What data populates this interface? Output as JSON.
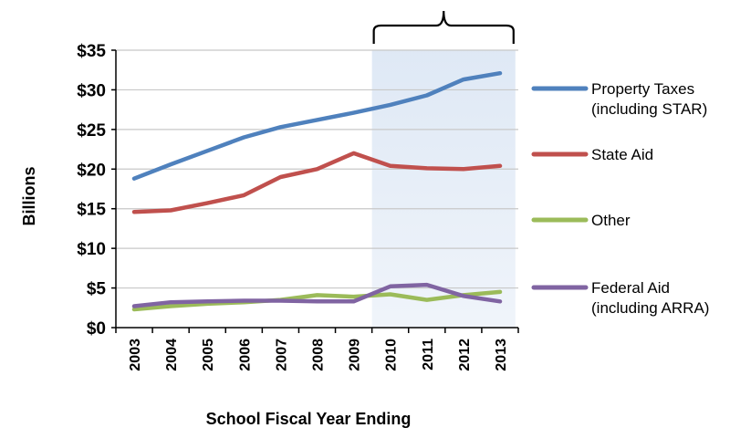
{
  "chart_data": {
    "type": "line",
    "xlabel": "School Fiscal Year Ending",
    "ylabel": "Billions",
    "categories": [
      "2003",
      "2004",
      "2005",
      "2006",
      "2007",
      "2008",
      "2009",
      "2010",
      "2011",
      "2012",
      "2013"
    ],
    "ylim": [
      0,
      35
    ],
    "yticks": [
      {
        "value": 0,
        "label": "$0"
      },
      {
        "value": 5,
        "label": "$5"
      },
      {
        "value": 10,
        "label": "$10"
      },
      {
        "value": 15,
        "label": "$15"
      },
      {
        "value": 20,
        "label": "$20"
      },
      {
        "value": 25,
        "label": "$25"
      },
      {
        "value": 30,
        "label": "$30"
      },
      {
        "value": 35,
        "label": "$35"
      }
    ],
    "grid": true,
    "legend_position": "right",
    "highlight_range": [
      "2010",
      "2013"
    ],
    "series": [
      {
        "name": "Property Taxes (including STAR)",
        "legend_lines": [
          "Property Taxes",
          "(including STAR)"
        ],
        "color": "#4f81bd",
        "values": [
          18.8,
          20.6,
          22.3,
          24.0,
          25.3,
          26.2,
          27.1,
          28.1,
          29.3,
          31.3,
          32.1
        ]
      },
      {
        "name": "State Aid",
        "legend_lines": [
          "State Aid"
        ],
        "color": "#c0504d",
        "values": [
          14.6,
          14.8,
          15.7,
          16.7,
          19.0,
          20.0,
          22.0,
          20.4,
          20.1,
          20.0,
          20.4
        ]
      },
      {
        "name": "Other",
        "legend_lines": [
          "Other"
        ],
        "color": "#9bbb59",
        "values": [
          2.3,
          2.7,
          3.0,
          3.2,
          3.5,
          4.1,
          3.9,
          4.2,
          3.5,
          4.1,
          4.5
        ]
      },
      {
        "name": "Federal Aid (including ARRA)",
        "legend_lines": [
          "Federal Aid",
          "(including ARRA)"
        ],
        "color": "#8064a2",
        "values": [
          2.7,
          3.2,
          3.3,
          3.4,
          3.4,
          3.3,
          3.3,
          5.2,
          5.4,
          4.0,
          3.3
        ]
      }
    ]
  }
}
